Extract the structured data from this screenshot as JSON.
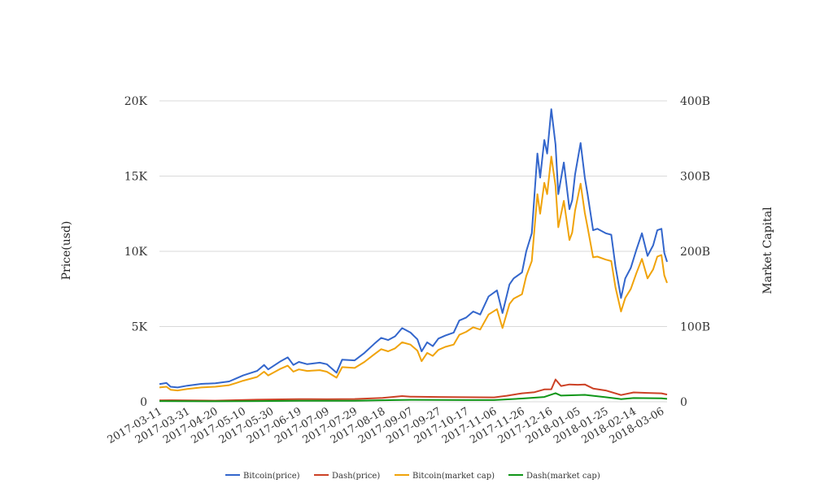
{
  "chart_data": {
    "type": "line",
    "title": "",
    "ylabel": "Price(usd)",
    "y2label": "Market Capital",
    "ylim": [
      0,
      20000
    ],
    "y2lim": [
      0,
      400
    ],
    "yticks": [
      "0",
      "5K",
      "10K",
      "15K",
      "20K"
    ],
    "y2ticks": [
      "0",
      "100B",
      "200B",
      "300B",
      "400B"
    ],
    "grid": true,
    "legend_position": "bottom",
    "x_categories": [
      "2017-03-11",
      "2017-03-31",
      "2017-04-20",
      "2017-05-10",
      "2017-05-30",
      "2017-06-19",
      "2017-07-09",
      "2017-07-29",
      "2017-08-18",
      "2017-09-07",
      "2017-09-27",
      "2017-10-17",
      "2017-11-06",
      "2017-11-26",
      "2017-12-16",
      "2018-01-05",
      "2018-01-25",
      "2018-02-14",
      "2018-03-06"
    ],
    "x_end": "2018-03-10",
    "series": [
      {
        "name": "Bitcoin(price)",
        "color": "#3366cc",
        "axis": "left",
        "points": [
          [
            "2017-03-11",
            1180
          ],
          [
            "2017-03-16",
            1250
          ],
          [
            "2017-03-19",
            1000
          ],
          [
            "2017-03-24",
            950
          ],
          [
            "2017-03-31",
            1070
          ],
          [
            "2017-04-10",
            1190
          ],
          [
            "2017-04-20",
            1230
          ],
          [
            "2017-04-30",
            1350
          ],
          [
            "2017-05-05",
            1550
          ],
          [
            "2017-05-10",
            1750
          ],
          [
            "2017-05-20",
            2050
          ],
          [
            "2017-05-25",
            2450
          ],
          [
            "2017-05-28",
            2150
          ],
          [
            "2017-06-06",
            2700
          ],
          [
            "2017-06-11",
            2950
          ],
          [
            "2017-06-15",
            2450
          ],
          [
            "2017-06-19",
            2650
          ],
          [
            "2017-06-25",
            2500
          ],
          [
            "2017-07-04",
            2600
          ],
          [
            "2017-07-09",
            2500
          ],
          [
            "2017-07-16",
            1930
          ],
          [
            "2017-07-20",
            2800
          ],
          [
            "2017-07-29",
            2750
          ],
          [
            "2017-08-05",
            3250
          ],
          [
            "2017-08-12",
            3850
          ],
          [
            "2017-08-17",
            4250
          ],
          [
            "2017-08-22",
            4100
          ],
          [
            "2017-08-27",
            4350
          ],
          [
            "2017-09-01",
            4900
          ],
          [
            "2017-09-07",
            4600
          ],
          [
            "2017-09-12",
            4150
          ],
          [
            "2017-09-15",
            3350
          ],
          [
            "2017-09-19",
            3950
          ],
          [
            "2017-09-23",
            3700
          ],
          [
            "2017-09-27",
            4200
          ],
          [
            "2017-10-02",
            4400
          ],
          [
            "2017-10-08",
            4600
          ],
          [
            "2017-10-12",
            5400
          ],
          [
            "2017-10-17",
            5600
          ],
          [
            "2017-10-22",
            6000
          ],
          [
            "2017-10-27",
            5800
          ],
          [
            "2017-11-02",
            7000
          ],
          [
            "2017-11-08",
            7400
          ],
          [
            "2017-11-12",
            5900
          ],
          [
            "2017-11-17",
            7800
          ],
          [
            "2017-11-20",
            8200
          ],
          [
            "2017-11-26",
            8600
          ],
          [
            "2017-11-29",
            10000
          ],
          [
            "2017-12-03",
            11200
          ],
          [
            "2017-12-07",
            16500
          ],
          [
            "2017-12-09",
            14900
          ],
          [
            "2017-12-12",
            17400
          ],
          [
            "2017-12-14",
            16500
          ],
          [
            "2017-12-17",
            19450
          ],
          [
            "2017-12-20",
            17100
          ],
          [
            "2017-12-22",
            13800
          ],
          [
            "2017-12-26",
            15900
          ],
          [
            "2017-12-30",
            12800
          ],
          [
            "2018-01-01",
            13400
          ],
          [
            "2018-01-03",
            15100
          ],
          [
            "2018-01-07",
            17200
          ],
          [
            "2018-01-10",
            14900
          ],
          [
            "2018-01-12",
            13800
          ],
          [
            "2018-01-16",
            11400
          ],
          [
            "2018-01-19",
            11500
          ],
          [
            "2018-01-25",
            11200
          ],
          [
            "2018-01-29",
            11100
          ],
          [
            "2018-02-01",
            9000
          ],
          [
            "2018-02-05",
            6900
          ],
          [
            "2018-02-08",
            8200
          ],
          [
            "2018-02-12",
            8900
          ],
          [
            "2018-02-16",
            10100
          ],
          [
            "2018-02-20",
            11200
          ],
          [
            "2018-02-24",
            9700
          ],
          [
            "2018-02-28",
            10400
          ],
          [
            "2018-03-03",
            11400
          ],
          [
            "2018-03-06",
            11500
          ],
          [
            "2018-03-08",
            9900
          ],
          [
            "2018-03-10",
            9300
          ]
        ]
      },
      {
        "name": "Dash(price)",
        "color": "#cc4125",
        "axis": "left",
        "points": [
          [
            "2017-03-11",
            90
          ],
          [
            "2017-03-20",
            105
          ],
          [
            "2017-04-20",
            75
          ],
          [
            "2017-05-20",
            140
          ],
          [
            "2017-06-19",
            180
          ],
          [
            "2017-07-09",
            170
          ],
          [
            "2017-07-29",
            185
          ],
          [
            "2017-08-18",
            260
          ],
          [
            "2017-09-01",
            380
          ],
          [
            "2017-09-07",
            340
          ],
          [
            "2017-09-27",
            320
          ],
          [
            "2017-10-17",
            300
          ],
          [
            "2017-11-06",
            290
          ],
          [
            "2017-11-15",
            400
          ],
          [
            "2017-11-26",
            560
          ],
          [
            "2017-12-05",
            640
          ],
          [
            "2017-12-12",
            820
          ],
          [
            "2017-12-17",
            830
          ],
          [
            "2017-12-20",
            1480
          ],
          [
            "2017-12-24",
            1050
          ],
          [
            "2017-12-30",
            1150
          ],
          [
            "2018-01-05",
            1130
          ],
          [
            "2018-01-10",
            1150
          ],
          [
            "2018-01-16",
            880
          ],
          [
            "2018-01-25",
            750
          ],
          [
            "2018-02-05",
            450
          ],
          [
            "2018-02-14",
            620
          ],
          [
            "2018-02-24",
            590
          ],
          [
            "2018-03-06",
            560
          ],
          [
            "2018-03-10",
            480
          ]
        ]
      },
      {
        "name": "Bitcoin(market cap)",
        "color": "#f0a30a",
        "axis": "right",
        "points": [
          [
            "2017-03-11",
            19
          ],
          [
            "2017-03-16",
            20
          ],
          [
            "2017-03-19",
            16
          ],
          [
            "2017-03-24",
            15
          ],
          [
            "2017-03-31",
            17
          ],
          [
            "2017-04-10",
            19
          ],
          [
            "2017-04-20",
            20
          ],
          [
            "2017-04-30",
            22
          ],
          [
            "2017-05-05",
            25
          ],
          [
            "2017-05-10",
            28
          ],
          [
            "2017-05-20",
            33
          ],
          [
            "2017-05-25",
            40
          ],
          [
            "2017-05-28",
            35
          ],
          [
            "2017-06-06",
            44
          ],
          [
            "2017-06-11",
            48
          ],
          [
            "2017-06-15",
            40
          ],
          [
            "2017-06-19",
            43
          ],
          [
            "2017-06-25",
            41
          ],
          [
            "2017-07-04",
            42
          ],
          [
            "2017-07-09",
            40
          ],
          [
            "2017-07-16",
            32
          ],
          [
            "2017-07-20",
            46
          ],
          [
            "2017-07-29",
            45
          ],
          [
            "2017-08-05",
            53
          ],
          [
            "2017-08-12",
            63
          ],
          [
            "2017-08-17",
            70
          ],
          [
            "2017-08-22",
            67
          ],
          [
            "2017-08-27",
            71
          ],
          [
            "2017-09-01",
            79
          ],
          [
            "2017-09-07",
            76
          ],
          [
            "2017-09-12",
            68
          ],
          [
            "2017-09-15",
            54
          ],
          [
            "2017-09-19",
            65
          ],
          [
            "2017-09-23",
            61
          ],
          [
            "2017-09-27",
            69
          ],
          [
            "2017-10-02",
            73
          ],
          [
            "2017-10-08",
            76
          ],
          [
            "2017-10-12",
            89
          ],
          [
            "2017-10-17",
            93
          ],
          [
            "2017-10-22",
            99
          ],
          [
            "2017-10-27",
            96
          ],
          [
            "2017-11-02",
            116
          ],
          [
            "2017-11-08",
            123
          ],
          [
            "2017-11-12",
            98
          ],
          [
            "2017-11-17",
            130
          ],
          [
            "2017-11-20",
            137
          ],
          [
            "2017-11-26",
            143
          ],
          [
            "2017-11-29",
            167
          ],
          [
            "2017-12-03",
            187
          ],
          [
            "2017-12-07",
            276
          ],
          [
            "2017-12-09",
            250
          ],
          [
            "2017-12-12",
            291
          ],
          [
            "2017-12-14",
            276
          ],
          [
            "2017-12-17",
            326
          ],
          [
            "2017-12-20",
            287
          ],
          [
            "2017-12-22",
            232
          ],
          [
            "2017-12-26",
            267
          ],
          [
            "2017-12-30",
            215
          ],
          [
            "2018-01-01",
            225
          ],
          [
            "2018-01-03",
            254
          ],
          [
            "2018-01-07",
            290
          ],
          [
            "2018-01-10",
            251
          ],
          [
            "2018-01-12",
            232
          ],
          [
            "2018-01-16",
            192
          ],
          [
            "2018-01-19",
            193
          ],
          [
            "2018-01-25",
            189
          ],
          [
            "2018-01-29",
            187
          ],
          [
            "2018-02-01",
            152
          ],
          [
            "2018-02-05",
            120
          ],
          [
            "2018-02-08",
            138
          ],
          [
            "2018-02-12",
            150
          ],
          [
            "2018-02-16",
            171
          ],
          [
            "2018-02-20",
            190
          ],
          [
            "2018-02-24",
            164
          ],
          [
            "2018-02-28",
            176
          ],
          [
            "2018-03-03",
            193
          ],
          [
            "2018-03-06",
            195
          ],
          [
            "2018-03-08",
            168
          ],
          [
            "2018-03-10",
            158
          ]
        ]
      },
      {
        "name": "Dash(market cap)",
        "color": "#109618",
        "axis": "right",
        "points": [
          [
            "2017-03-11",
            1.0
          ],
          [
            "2017-04-20",
            0.6
          ],
          [
            "2017-05-20",
            1.0
          ],
          [
            "2017-06-19",
            1.3
          ],
          [
            "2017-07-29",
            1.4
          ],
          [
            "2017-08-18",
            2.0
          ],
          [
            "2017-09-07",
            2.6
          ],
          [
            "2017-09-27",
            2.4
          ],
          [
            "2017-10-17",
            2.3
          ],
          [
            "2017-11-06",
            2.3
          ],
          [
            "2017-11-26",
            4.3
          ],
          [
            "2017-12-12",
            6.4
          ],
          [
            "2017-12-20",
            11.5
          ],
          [
            "2017-12-24",
            8.2
          ],
          [
            "2018-01-05",
            9.0
          ],
          [
            "2018-01-10",
            9.2
          ],
          [
            "2018-01-25",
            6.0
          ],
          [
            "2018-02-05",
            3.6
          ],
          [
            "2018-02-14",
            5.0
          ],
          [
            "2018-03-06",
            4.5
          ],
          [
            "2018-03-10",
            3.9
          ]
        ]
      }
    ]
  }
}
